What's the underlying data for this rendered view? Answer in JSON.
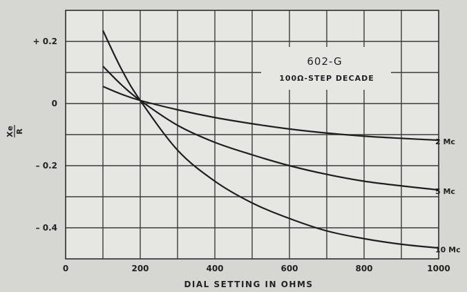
{
  "chart_data": {
    "type": "line",
    "title": "602-G",
    "subtitle": "100Ω-STEP DECADE",
    "xlabel": "DIAL SETTING IN OHMS",
    "ylabel_top": "Xe",
    "ylabel_bottom": "R",
    "xlim": [
      0,
      1000
    ],
    "ylim": [
      -0.5,
      0.3
    ],
    "grid": true,
    "x_ticks": [
      {
        "value": 0,
        "label": "0"
      },
      {
        "value": 200,
        "label": "200"
      },
      {
        "value": 400,
        "label": "400"
      },
      {
        "value": 600,
        "label": "600"
      },
      {
        "value": 800,
        "label": "800"
      },
      {
        "value": 1000,
        "label": "1000"
      }
    ],
    "y_ticks": [
      {
        "value": 0.2,
        "label": "+ 0.2"
      },
      {
        "value": 0,
        "label": "0"
      },
      {
        "value": -0.2,
        "label": "– 0.2"
      },
      {
        "value": -0.4,
        "label": "– 0.4"
      }
    ],
    "series": [
      {
        "name": "2 Mc",
        "x": [
          100,
          150,
          200,
          300,
          400,
          500,
          600,
          700,
          800,
          900,
          1000
        ],
        "values": [
          0.055,
          0.03,
          0.01,
          -0.02,
          -0.045,
          -0.065,
          -0.082,
          -0.095,
          -0.105,
          -0.112,
          -0.118
        ]
      },
      {
        "name": "5 Mc",
        "x": [
          100,
          150,
          200,
          300,
          400,
          500,
          600,
          700,
          800,
          900,
          1000
        ],
        "values": [
          0.12,
          0.06,
          0.01,
          -0.07,
          -0.125,
          -0.165,
          -0.2,
          -0.228,
          -0.25,
          -0.265,
          -0.278
        ]
      },
      {
        "name": "10 Mc",
        "x": [
          100,
          150,
          200,
          300,
          400,
          500,
          600,
          700,
          800,
          900,
          1000
        ],
        "values": [
          0.235,
          0.11,
          0.01,
          -0.15,
          -0.25,
          -0.32,
          -0.37,
          -0.41,
          -0.435,
          -0.453,
          -0.465
        ]
      }
    ]
  }
}
